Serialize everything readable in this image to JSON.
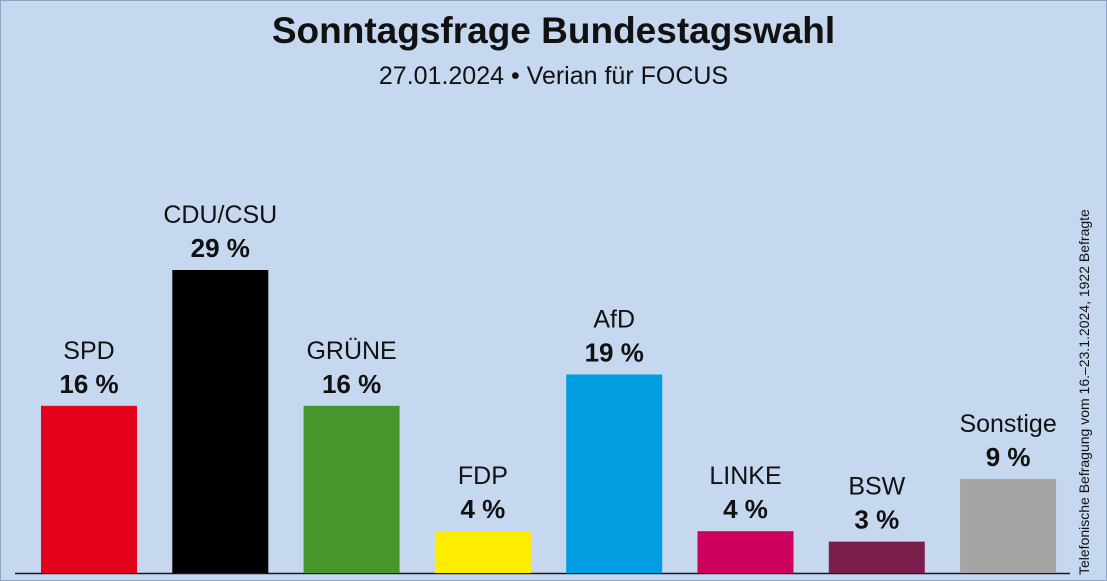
{
  "colors": {
    "background": "#c6d8ef",
    "SPD": "#e3001b",
    "CDU/CSU": "#000000",
    "GRÜNE": "#46962b",
    "FDP": "#ffed00",
    "AfD": "#009ee0",
    "LINKE": "#cd005e",
    "BSW": "#7a1e4b",
    "Sonstige": "#a5a5a5"
  },
  "chart_data": {
    "type": "bar",
    "title": "Sonntagsfrage Bundestagswahl",
    "subtitle": "27.01.2024 • Verian für FOCUS",
    "note": "Telefonische Befragung vom 16.–23.1.2024, 1922 Befragte",
    "categories": [
      "SPD",
      "CDU/CSU",
      "GRÜNE",
      "FDP",
      "AfD",
      "LINKE",
      "BSW",
      "Sonstige"
    ],
    "values": [
      16,
      29,
      16,
      4,
      19,
      4,
      3,
      9
    ],
    "value_labels": [
      "16 %",
      "29 %",
      "16 %",
      "4 %",
      "19 %",
      "4 %",
      "3 %",
      "9 %"
    ],
    "unit": "%",
    "ylim": [
      0,
      29
    ],
    "grid": false,
    "legend": "none"
  }
}
